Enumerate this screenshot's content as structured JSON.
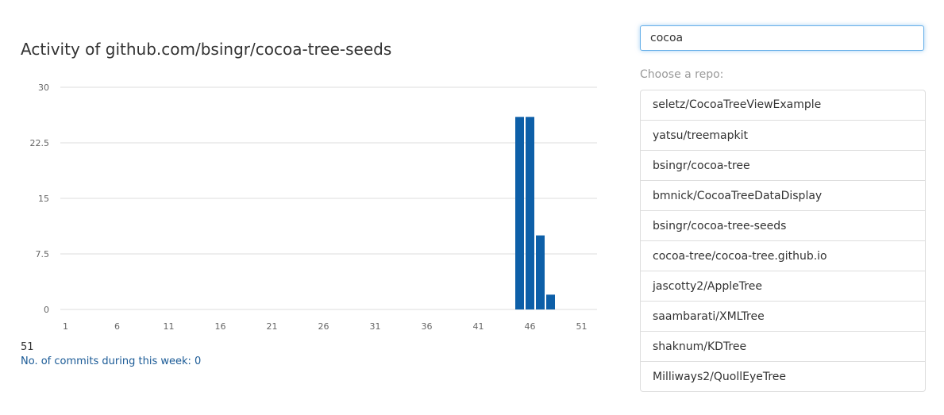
{
  "page": {
    "title": "Activity of github.com/bsingr/cocoa-tree-seeds"
  },
  "search": {
    "value": "cocoa",
    "placeholder": ""
  },
  "choose_label": "Choose a repo:",
  "repos": [
    "seletz/CocoaTreeViewExample",
    "yatsu/treemapkit",
    "bsingr/cocoa-tree",
    "bmnick/CocoaTreeDataDisplay",
    "bsingr/cocoa-tree-seeds",
    "cocoa-tree/cocoa-tree.github.io",
    "jascotty2/AppleTree",
    "saambarati/XMLTree",
    "shaknum/KDTree",
    "Milliways2/QuollEyeTree"
  ],
  "info": {
    "week_number": "51",
    "commits_line": "No. of commits during this week: 0"
  },
  "colors": {
    "bar": "#0d5fa8",
    "grid": "#dddddd",
    "focus_border": "#66afe9",
    "info_text": "#1a5a96"
  },
  "chart_data": {
    "type": "bar",
    "title": "Activity of github.com/bsingr/cocoa-tree-seeds",
    "xlabel": "",
    "ylabel": "",
    "x_range": [
      1,
      52
    ],
    "x_ticks": [
      1,
      6,
      11,
      16,
      21,
      26,
      31,
      36,
      41,
      46,
      51
    ],
    "y_ticks": [
      0,
      7.5,
      15,
      22.5,
      30
    ],
    "ylim": [
      0,
      30
    ],
    "grid": true,
    "legend": "none",
    "series": [
      {
        "x": [
          45,
          46,
          47,
          48
        ],
        "values": [
          26,
          26,
          10,
          2
        ]
      }
    ]
  }
}
